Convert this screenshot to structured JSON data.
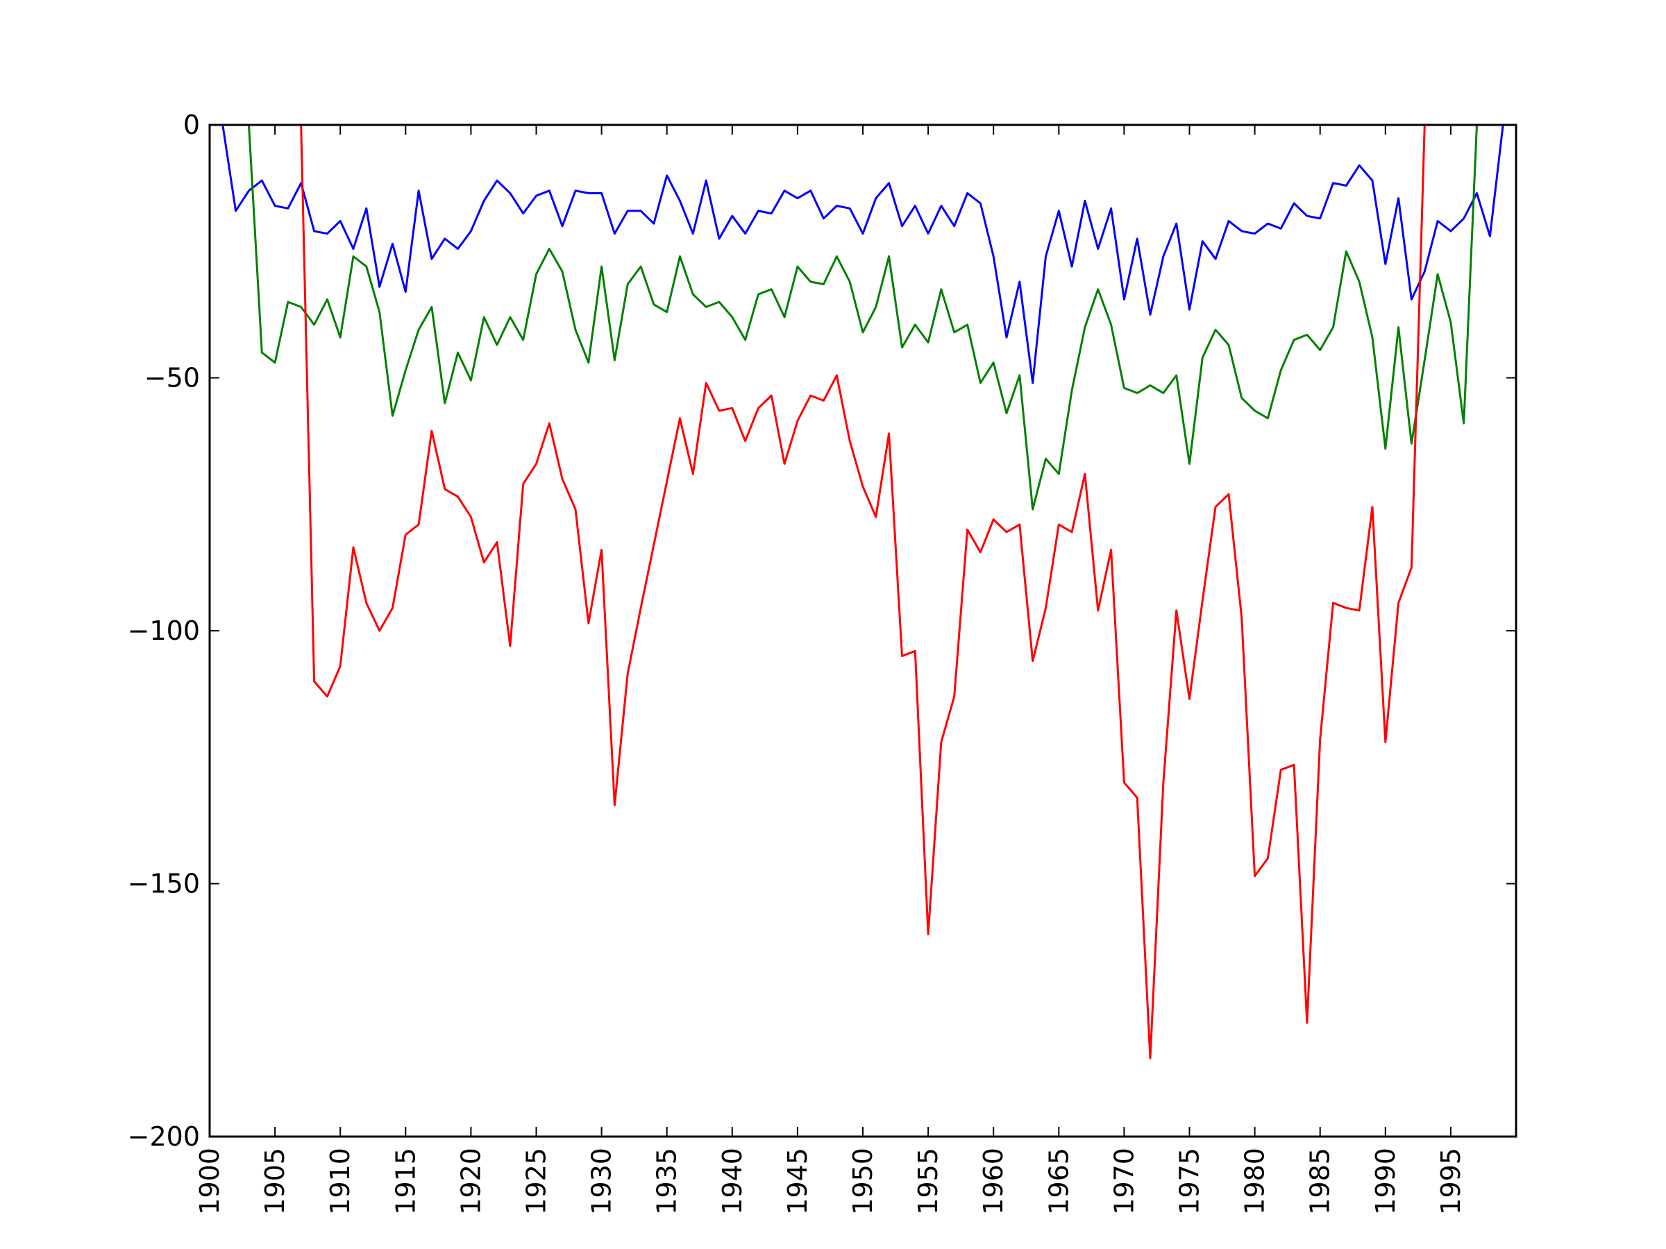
{
  "chart_data": {
    "type": "line",
    "title": "",
    "xlabel": "",
    "ylabel": "",
    "xlim": [
      1900,
      2000
    ],
    "ylim": [
      -200,
      0
    ],
    "x_ticks": [
      "1900",
      "1905",
      "1910",
      "1915",
      "1920",
      "1925",
      "1930",
      "1935",
      "1940",
      "1945",
      "1950",
      "1955",
      "1960",
      "1965",
      "1970",
      "1975",
      "1980",
      "1985",
      "1990",
      "1995"
    ],
    "y_ticks": [
      "0",
      "−50",
      "−100",
      "−150",
      "−200"
    ],
    "y_tick_values": [
      0,
      -50,
      -100,
      -150,
      -200
    ],
    "grid": false,
    "x": [
      1900,
      1901,
      1902,
      1903,
      1904,
      1905,
      1906,
      1907,
      1908,
      1909,
      1910,
      1911,
      1912,
      1913,
      1914,
      1915,
      1916,
      1917,
      1918,
      1919,
      1920,
      1921,
      1922,
      1923,
      1924,
      1925,
      1926,
      1927,
      1928,
      1929,
      1930,
      1931,
      1932,
      1933,
      1934,
      1935,
      1936,
      1937,
      1938,
      1939,
      1940,
      1941,
      1942,
      1943,
      1944,
      1945,
      1946,
      1947,
      1948,
      1949,
      1950,
      1951,
      1952,
      1953,
      1954,
      1955,
      1956,
      1957,
      1958,
      1959,
      1960,
      1961,
      1962,
      1963,
      1964,
      1965,
      1966,
      1967,
      1968,
      1969,
      1970,
      1971,
      1972,
      1973,
      1974,
      1975,
      1976,
      1977,
      1978,
      1979,
      1980,
      1981,
      1982,
      1983,
      1984,
      1985,
      1986,
      1987,
      1988,
      1989,
      1990,
      1991,
      1992,
      1993,
      1994,
      1995,
      1996,
      1997,
      1998,
      1999
    ],
    "series": [
      {
        "color": "#0000ff",
        "values": [
          10,
          0,
          -17,
          -13,
          -11,
          -16,
          -16.5,
          -11.5,
          -21,
          -21.5,
          -19,
          -24.5,
          -16.5,
          -32,
          -23.5,
          -33,
          -13,
          -26.5,
          -22.5,
          -24.5,
          -21,
          -15,
          -11,
          -13.5,
          -17.5,
          -14,
          -13,
          -20,
          -13,
          -13.5,
          -13.5,
          -21.5,
          -17,
          -17,
          -19.5,
          -10,
          -15,
          -21.5,
          -11,
          -22.5,
          -18,
          -21.5,
          -17,
          -17.5,
          -13,
          -14.5,
          -13,
          -18.5,
          -16,
          -16.5,
          -21.5,
          -14.5,
          -11.5,
          -20,
          -16,
          -21.5,
          -16,
          -20,
          -13.5,
          -15.5,
          -26,
          -42,
          -31,
          -51,
          -26,
          -17,
          -28,
          -15,
          -24.5,
          -16.5,
          -34.5,
          -22.5,
          -37.5,
          -26,
          -19.5,
          -36.5,
          -23,
          -26.5,
          -19,
          -21,
          -21.5,
          -19.5,
          -20.5,
          -15.5,
          -18,
          -18.5,
          -11.5,
          -12,
          -8,
          -11,
          -27.5,
          -14.5,
          -34.5,
          -29,
          -19,
          -21,
          -18.5,
          -13.5,
          -22,
          0
        ]
      },
      {
        "color": "#008000",
        "values": [
          10,
          10,
          10,
          0,
          -45,
          -47,
          -35,
          -36,
          -39.5,
          -34.5,
          -42,
          -26,
          -28,
          -37,
          -57.5,
          -48.5,
          -40.5,
          -36,
          -55,
          -45,
          -50.5,
          -38,
          -43.5,
          -38,
          -42.5,
          -29.5,
          -24.5,
          -29,
          -40.5,
          -47,
          -28,
          -46.5,
          -31.5,
          -28,
          -35.5,
          -37,
          -26,
          -33.5,
          -36,
          -35,
          -38,
          -42.5,
          -33.5,
          -32.5,
          -38,
          -28,
          -31,
          -31.5,
          -26,
          -31,
          -41,
          -36,
          -26,
          -44,
          -39.5,
          -43,
          -32.5,
          -41,
          -39.5,
          -51,
          -47,
          -57,
          -49.5,
          -76,
          -66,
          -69,
          -52.5,
          -40,
          -32.5,
          -39.5,
          -52,
          -53,
          -51.5,
          -53,
          -49.5,
          -67,
          -46,
          -40.5,
          -43.5,
          -54,
          -56.5,
          -58,
          -48.5,
          -42.5,
          -41.5,
          -44.5,
          -40,
          -25,
          -31,
          -42,
          -64,
          -40,
          -63,
          -46.5,
          -29.5,
          -39,
          -59,
          0,
          10,
          10
        ]
      },
      {
        "color": "#ff0000",
        "values": [
          10,
          10,
          10,
          10,
          10,
          10,
          10,
          0,
          -110,
          -113,
          -107,
          -83.5,
          -94.5,
          -100,
          -95.5,
          -81,
          -79,
          -60.5,
          -72,
          -73.5,
          -77.5,
          -86.5,
          -82.5,
          -103,
          -71,
          -67,
          -59,
          -70,
          -76,
          -98.5,
          -84,
          -134.5,
          -108.5,
          -95.5,
          -83,
          -70.5,
          -58,
          -69,
          -51,
          -56.5,
          -56,
          -62.5,
          -56,
          -53.5,
          -67,
          -58.5,
          -53.5,
          -54.5,
          -49.5,
          -62.5,
          -71.5,
          -77.5,
          -61,
          -105,
          -104,
          -160,
          -122,
          -113,
          -80,
          -84.5,
          -78,
          -80.5,
          -79,
          -106,
          -95.5,
          -79,
          -80.5,
          -69,
          -96,
          -84,
          -130,
          -133,
          -184.5,
          -130,
          -96,
          -113.5,
          -94,
          -75.5,
          -73,
          -97.5,
          -148.5,
          -145,
          -127.5,
          -126.5,
          -177.5,
          -121.5,
          -94.5,
          -95.5,
          -96,
          -75.5,
          -122,
          -94.5,
          -87.5,
          0,
          10,
          10,
          10,
          10,
          10,
          10
        ]
      }
    ]
  }
}
